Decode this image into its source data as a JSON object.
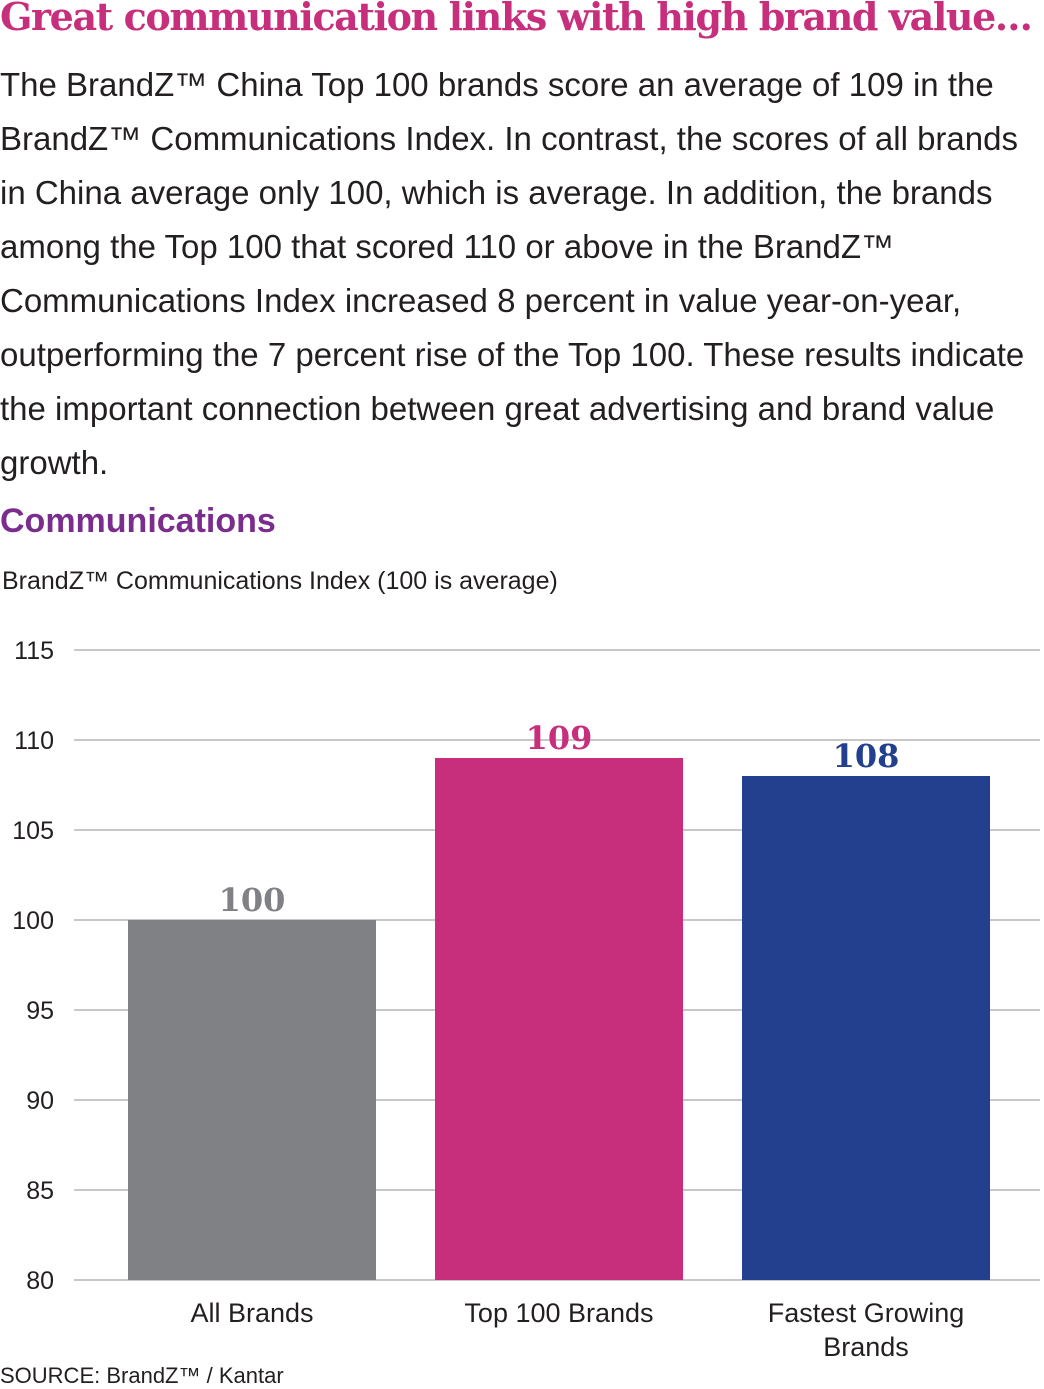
{
  "headline": "Great communication links with high brand value…",
  "intro": "The BrandZ™ China Top 100 brands score an average of 109 in the BrandZ™ Communications Index. In contrast, the scores of all brands in China average only 100, which is average. In addition, the brands among the Top 100 that scored 110 or above in the BrandZ™ Communications Index increased 8 percent in value year-on-year, outperforming the 7 percent rise of the Top 100. These results indicate the important connection between great advertising and brand value growth.",
  "source": "SOURCE: BrandZ™ / Kantar",
  "colors": {
    "headline": "#c72e7c",
    "section": "#7b2d8e",
    "grid": "#c8c8c8"
  },
  "chart_data": {
    "type": "bar",
    "title": "Communications",
    "subtitle": "BrandZ™ Communications Index (100 is average)",
    "xlabel": "",
    "ylabel": "",
    "ylim": [
      80,
      115
    ],
    "yticks": [
      80,
      85,
      90,
      95,
      100,
      105,
      110,
      115
    ],
    "grid": true,
    "categories": [
      [
        "All Brands"
      ],
      [
        "Top 100 Brands"
      ],
      [
        "Fastest Growing",
        "Brands"
      ]
    ],
    "values": [
      100,
      109,
      108
    ],
    "bar_colors": [
      "#808184",
      "#c72e7c",
      "#23408e"
    ],
    "label_colors": [
      "#808184",
      "#c72e7c",
      "#23408e"
    ]
  }
}
